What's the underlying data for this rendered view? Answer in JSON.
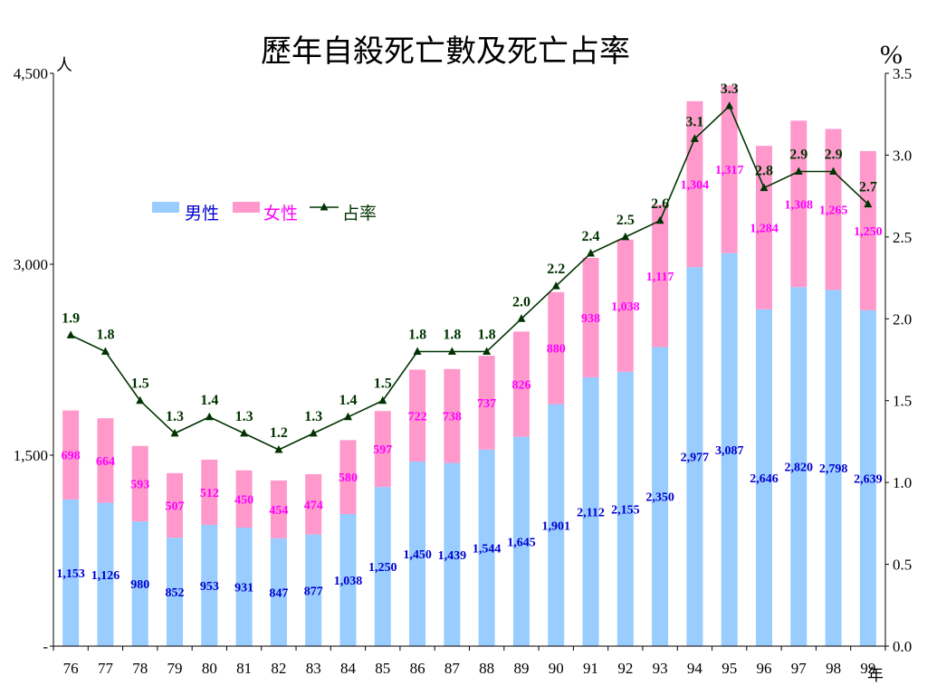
{
  "chart_data": {
    "type": "bar",
    "title": "歷年自殺死亡數及死亡占率",
    "left_unit": "人",
    "right_unit": "%",
    "x_unit": "年",
    "categories": [
      "76",
      "77",
      "78",
      "79",
      "80",
      "81",
      "82",
      "83",
      "84",
      "85",
      "86",
      "87",
      "88",
      "89",
      "90",
      "91",
      "92",
      "93",
      "94",
      "95",
      "96",
      "97",
      "98",
      "99"
    ],
    "y_ticks": [
      {
        "value": 0,
        "label": "-"
      },
      {
        "value": 1500,
        "label": "1,500"
      },
      {
        "value": 3000,
        "label": "3,000"
      },
      {
        "value": 4500,
        "label": "4,500"
      }
    ],
    "y2_ticks": [
      "0.0",
      "0.5",
      "1.0",
      "1.5",
      "2.0",
      "2.5",
      "3.0",
      "3.5"
    ],
    "ylim": [
      0,
      4500
    ],
    "y2lim": [
      0,
      3.5
    ],
    "stacked": true,
    "series": [
      {
        "name": "男性",
        "kind": "bar",
        "color": "#99ccff",
        "label_color": "#0000cc",
        "values": [
          1153,
          1126,
          980,
          852,
          953,
          931,
          847,
          877,
          1038,
          1250,
          1450,
          1439,
          1544,
          1645,
          1901,
          2112,
          2155,
          2350,
          2977,
          3087,
          2646,
          2820,
          2798,
          2639
        ],
        "labels": [
          "1,153",
          "1,126",
          "980",
          "852",
          "953",
          "931",
          "847",
          "877",
          "1,038",
          "1,250",
          "1,450",
          "1,439",
          "1,544",
          "1,645",
          "1,901",
          "2,112",
          "2,155",
          "2,350",
          "2,977",
          "3,087",
          "2,646",
          "2,820",
          "2,798",
          "2,639"
        ]
      },
      {
        "name": "女性",
        "kind": "bar",
        "color": "#ff99cc",
        "label_color": "#ff00ff",
        "values": [
          698,
          664,
          593,
          507,
          512,
          450,
          454,
          474,
          580,
          597,
          722,
          738,
          737,
          826,
          880,
          938,
          1038,
          1117,
          1304,
          1317,
          1284,
          1308,
          1265,
          1250
        ],
        "labels": [
          "698",
          "664",
          "593",
          "507",
          "512",
          "450",
          "454",
          "474",
          "580",
          "597",
          "722",
          "738",
          "737",
          "826",
          "880",
          "938",
          "1,038",
          "1,117",
          "1,304",
          "1,317",
          "1,284",
          "1,308",
          "1,265",
          "1,250"
        ]
      },
      {
        "name": "占率",
        "kind": "line",
        "axis": "right",
        "color": "#003300",
        "values": [
          1.9,
          1.8,
          1.5,
          1.3,
          1.4,
          1.3,
          1.2,
          1.3,
          1.4,
          1.5,
          1.8,
          1.8,
          1.8,
          2.0,
          2.2,
          2.4,
          2.5,
          2.6,
          3.1,
          3.3,
          2.8,
          2.9,
          2.9,
          2.7
        ],
        "labels": [
          "1.9",
          "1.8",
          "1.5",
          "1.3",
          "1.4",
          "1.3",
          "1.2",
          "1.3",
          "1.4",
          "1.5",
          "1.8",
          "1.8",
          "1.8",
          "2.0",
          "2.2",
          "2.4",
          "2.5",
          "2.6",
          "3.1",
          "3.3",
          "2.8",
          "2.9",
          "2.9",
          "2.7"
        ]
      }
    ],
    "legend": {
      "placement": "upper-left inside plot",
      "items": [
        {
          "label": "男性",
          "color": "#99ccff",
          "text_color": "#0000cc",
          "marker": "box"
        },
        {
          "label": "女性",
          "color": "#ff99cc",
          "text_color": "#ff00ff",
          "marker": "box"
        },
        {
          "label": "占率",
          "color": "#003300",
          "text_color": "#003300",
          "marker": "line-triangle"
        }
      ]
    },
    "grid": false
  }
}
